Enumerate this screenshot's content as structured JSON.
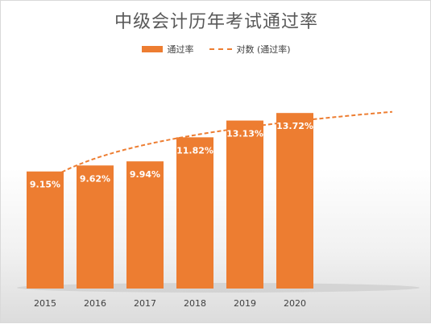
{
  "title": "中级会计历年考试通过率",
  "legend": {
    "bar_label": "通过率",
    "trend_label": "对数 (通过率)"
  },
  "colors": {
    "bar": "#ed7d31",
    "trend": "#ed7d31",
    "label": "#ffffff",
    "tick": "#404040"
  },
  "chart_data": {
    "type": "bar",
    "categories": [
      "2015",
      "2016",
      "2017",
      "2018",
      "2019",
      "2020"
    ],
    "series": [
      {
        "name": "通过率",
        "values": [
          9.15,
          9.62,
          9.94,
          11.82,
          13.13,
          13.72
        ],
        "data_labels": [
          "9.15%",
          "9.62%",
          "9.94%",
          "11.82%",
          "13.13%",
          "13.72%"
        ]
      }
    ],
    "trendline": {
      "type": "logarithmic",
      "name": "对数 (通过率)",
      "extends_forward": true
    },
    "title": "中级会计历年考试通过率",
    "xlabel": "",
    "ylabel": "",
    "ylim": [
      0,
      16
    ],
    "grid": false,
    "legend_position": "top"
  }
}
